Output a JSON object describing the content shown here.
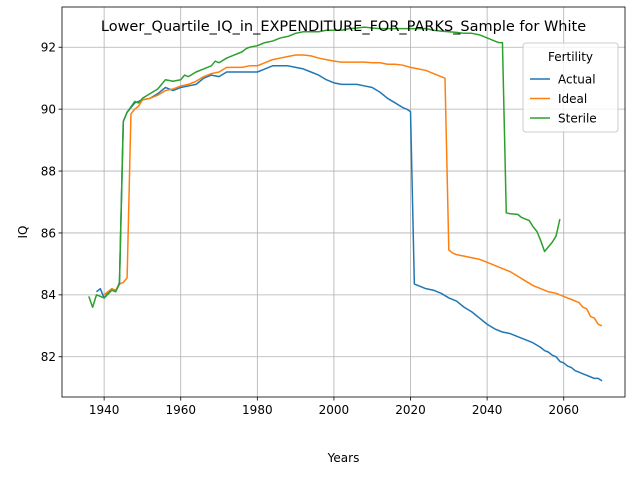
{
  "chart_data": {
    "type": "line",
    "title": "Lower_Quartile_IQ_in_EXPENDITURE_FOR_PARKS_Sample for White",
    "xlabel": "Years",
    "ylabel": "IQ",
    "xlim": [
      1929,
      2076
    ],
    "ylim": [
      80.7,
      93.3
    ],
    "xticks": [
      1940,
      1960,
      1980,
      2000,
      2020,
      2040,
      2060
    ],
    "yticks": [
      82,
      84,
      86,
      88,
      90,
      92
    ],
    "grid": true,
    "legend": {
      "title": "Fertility",
      "placement": "top-right"
    },
    "series": [
      {
        "name": "Actual",
        "color": "#1f77b4",
        "points": [
          [
            1938,
            84.1
          ],
          [
            1939,
            84.2
          ],
          [
            1940,
            83.9
          ],
          [
            1942,
            84.2
          ],
          [
            1943,
            84.1
          ],
          [
            1944,
            84.4
          ],
          [
            1945,
            89.6
          ],
          [
            1946,
            89.9
          ],
          [
            1948,
            90.2
          ],
          [
            1950,
            90.3
          ],
          [
            1952,
            90.35
          ],
          [
            1954,
            90.5
          ],
          [
            1956,
            90.7
          ],
          [
            1958,
            90.6
          ],
          [
            1960,
            90.7
          ],
          [
            1962,
            90.75
          ],
          [
            1964,
            90.8
          ],
          [
            1966,
            91.0
          ],
          [
            1968,
            91.1
          ],
          [
            1970,
            91.05
          ],
          [
            1972,
            91.2
          ],
          [
            1974,
            91.2
          ],
          [
            1976,
            91.2
          ],
          [
            1978,
            91.2
          ],
          [
            1980,
            91.2
          ],
          [
            1982,
            91.3
          ],
          [
            1984,
            91.4
          ],
          [
            1986,
            91.4
          ],
          [
            1988,
            91.4
          ],
          [
            1990,
            91.35
          ],
          [
            1992,
            91.3
          ],
          [
            1994,
            91.2
          ],
          [
            1996,
            91.1
          ],
          [
            1998,
            90.95
          ],
          [
            2000,
            90.85
          ],
          [
            2002,
            90.8
          ],
          [
            2004,
            90.8
          ],
          [
            2006,
            90.8
          ],
          [
            2008,
            90.75
          ],
          [
            2010,
            90.7
          ],
          [
            2012,
            90.55
          ],
          [
            2014,
            90.35
          ],
          [
            2016,
            90.2
          ],
          [
            2018,
            90.05
          ],
          [
            2019,
            90.0
          ],
          [
            2020,
            89.92
          ],
          [
            2021,
            84.35
          ],
          [
            2022,
            84.3
          ],
          [
            2024,
            84.2
          ],
          [
            2026,
            84.15
          ],
          [
            2028,
            84.05
          ],
          [
            2030,
            83.9
          ],
          [
            2032,
            83.8
          ],
          [
            2034,
            83.6
          ],
          [
            2036,
            83.45
          ],
          [
            2038,
            83.25
          ],
          [
            2040,
            83.05
          ],
          [
            2042,
            82.9
          ],
          [
            2044,
            82.8
          ],
          [
            2046,
            82.75
          ],
          [
            2048,
            82.65
          ],
          [
            2050,
            82.55
          ],
          [
            2052,
            82.45
          ],
          [
            2054,
            82.3
          ],
          [
            2055,
            82.2
          ],
          [
            2056,
            82.15
          ],
          [
            2057,
            82.05
          ],
          [
            2058,
            82.0
          ],
          [
            2059,
            81.85
          ],
          [
            2060,
            81.8
          ],
          [
            2061,
            81.7
          ],
          [
            2062,
            81.65
          ],
          [
            2063,
            81.55
          ],
          [
            2064,
            81.5
          ],
          [
            2065,
            81.45
          ],
          [
            2066,
            81.4
          ],
          [
            2067,
            81.35
          ],
          [
            2068,
            81.3
          ],
          [
            2069,
            81.3
          ],
          [
            2070,
            81.22
          ]
        ]
      },
      {
        "name": "Ideal",
        "color": "#ff7f0e",
        "points": [
          [
            1940,
            84.0
          ],
          [
            1941,
            84.1
          ],
          [
            1942,
            84.2
          ],
          [
            1943,
            84.15
          ],
          [
            1944,
            84.35
          ],
          [
            1945,
            84.4
          ],
          [
            1946,
            84.55
          ],
          [
            1947,
            89.85
          ],
          [
            1948,
            90.0
          ],
          [
            1949,
            90.1
          ],
          [
            1950,
            90.3
          ],
          [
            1952,
            90.35
          ],
          [
            1954,
            90.45
          ],
          [
            1956,
            90.6
          ],
          [
            1958,
            90.65
          ],
          [
            1960,
            90.75
          ],
          [
            1962,
            90.8
          ],
          [
            1964,
            90.9
          ],
          [
            1966,
            91.05
          ],
          [
            1968,
            91.15
          ],
          [
            1970,
            91.2
          ],
          [
            1972,
            91.35
          ],
          [
            1974,
            91.35
          ],
          [
            1976,
            91.35
          ],
          [
            1978,
            91.4
          ],
          [
            1980,
            91.4
          ],
          [
            1982,
            91.5
          ],
          [
            1984,
            91.6
          ],
          [
            1986,
            91.65
          ],
          [
            1988,
            91.7
          ],
          [
            1990,
            91.75
          ],
          [
            1992,
            91.75
          ],
          [
            1994,
            91.72
          ],
          [
            1996,
            91.65
          ],
          [
            1998,
            91.6
          ],
          [
            2000,
            91.55
          ],
          [
            2002,
            91.52
          ],
          [
            2004,
            91.52
          ],
          [
            2006,
            91.52
          ],
          [
            2008,
            91.52
          ],
          [
            2010,
            91.5
          ],
          [
            2012,
            91.5
          ],
          [
            2014,
            91.45
          ],
          [
            2016,
            91.45
          ],
          [
            2018,
            91.42
          ],
          [
            2020,
            91.35
          ],
          [
            2022,
            91.3
          ],
          [
            2024,
            91.25
          ],
          [
            2026,
            91.15
          ],
          [
            2028,
            91.05
          ],
          [
            2029,
            91.0
          ],
          [
            2030,
            85.45
          ],
          [
            2031,
            85.35
          ],
          [
            2032,
            85.3
          ],
          [
            2034,
            85.25
          ],
          [
            2036,
            85.2
          ],
          [
            2038,
            85.15
          ],
          [
            2040,
            85.05
          ],
          [
            2042,
            84.95
          ],
          [
            2044,
            84.85
          ],
          [
            2046,
            84.75
          ],
          [
            2048,
            84.6
          ],
          [
            2050,
            84.45
          ],
          [
            2052,
            84.3
          ],
          [
            2054,
            84.2
          ],
          [
            2056,
            84.1
          ],
          [
            2058,
            84.05
          ],
          [
            2060,
            83.95
          ],
          [
            2062,
            83.85
          ],
          [
            2064,
            83.75
          ],
          [
            2065,
            83.6
          ],
          [
            2066,
            83.55
          ],
          [
            2067,
            83.3
          ],
          [
            2068,
            83.25
          ],
          [
            2069,
            83.05
          ],
          [
            2070,
            83.0
          ]
        ]
      },
      {
        "name": "Sterile",
        "color": "#2ca02c",
        "points": [
          [
            1936,
            83.95
          ],
          [
            1937,
            83.6
          ],
          [
            1938,
            84.0
          ],
          [
            1940,
            83.9
          ],
          [
            1942,
            84.15
          ],
          [
            1943,
            84.1
          ],
          [
            1944,
            84.35
          ],
          [
            1945,
            89.6
          ],
          [
            1946,
            89.9
          ],
          [
            1948,
            90.25
          ],
          [
            1949,
            90.2
          ],
          [
            1950,
            90.35
          ],
          [
            1952,
            90.5
          ],
          [
            1954,
            90.65
          ],
          [
            1956,
            90.95
          ],
          [
            1958,
            90.9
          ],
          [
            1960,
            90.95
          ],
          [
            1961,
            91.1
          ],
          [
            1962,
            91.05
          ],
          [
            1964,
            91.2
          ],
          [
            1966,
            91.3
          ],
          [
            1968,
            91.4
          ],
          [
            1969,
            91.55
          ],
          [
            1970,
            91.5
          ],
          [
            1972,
            91.65
          ],
          [
            1974,
            91.75
          ],
          [
            1976,
            91.85
          ],
          [
            1977,
            91.95
          ],
          [
            1978,
            92.0
          ],
          [
            1980,
            92.05
          ],
          [
            1982,
            92.15
          ],
          [
            1984,
            92.2
          ],
          [
            1986,
            92.3
          ],
          [
            1988,
            92.35
          ],
          [
            1990,
            92.45
          ],
          [
            1992,
            92.5
          ],
          [
            1994,
            92.5
          ],
          [
            1996,
            92.5
          ],
          [
            1998,
            92.55
          ],
          [
            2000,
            92.55
          ],
          [
            2002,
            92.55
          ],
          [
            2004,
            92.6
          ],
          [
            2006,
            92.62
          ],
          [
            2008,
            92.65
          ],
          [
            2010,
            92.62
          ],
          [
            2012,
            92.6
          ],
          [
            2014,
            92.6
          ],
          [
            2016,
            92.6
          ],
          [
            2018,
            92.6
          ],
          [
            2020,
            92.6
          ],
          [
            2022,
            92.6
          ],
          [
            2024,
            92.6
          ],
          [
            2026,
            92.55
          ],
          [
            2028,
            92.52
          ],
          [
            2030,
            92.5
          ],
          [
            2032,
            92.48
          ],
          [
            2034,
            92.45
          ],
          [
            2036,
            92.45
          ],
          [
            2038,
            92.4
          ],
          [
            2040,
            92.3
          ],
          [
            2042,
            92.2
          ],
          [
            2043,
            92.15
          ],
          [
            2044,
            92.15
          ],
          [
            2045,
            86.65
          ],
          [
            2046,
            86.62
          ],
          [
            2048,
            86.6
          ],
          [
            2049,
            86.5
          ],
          [
            2050,
            86.45
          ],
          [
            2051,
            86.4
          ],
          [
            2052,
            86.2
          ],
          [
            2053,
            86.05
          ],
          [
            2054,
            85.75
          ],
          [
            2055,
            85.4
          ],
          [
            2056,
            85.55
          ],
          [
            2057,
            85.7
          ],
          [
            2058,
            85.9
          ],
          [
            2059,
            86.45
          ]
        ]
      }
    ]
  }
}
